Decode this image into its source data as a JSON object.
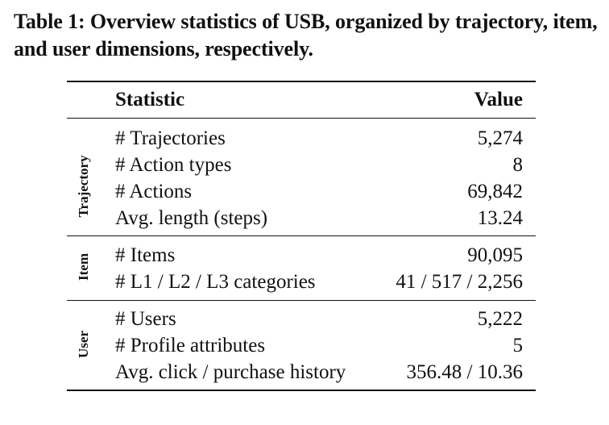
{
  "caption": "Table 1: Overview statistics of USB, organized by trajectory, item, and user dimensions, respectively.",
  "header": {
    "statistic": "Statistic",
    "value": "Value"
  },
  "groups": [
    {
      "label": "Trajectory",
      "rows": [
        {
          "statistic": "# Trajectories",
          "value": "5,274"
        },
        {
          "statistic": "# Action types",
          "value": "8"
        },
        {
          "statistic": "# Actions",
          "value": "69,842"
        },
        {
          "statistic": "Avg. length (steps)",
          "value": "13.24"
        }
      ]
    },
    {
      "label": "Item",
      "rows": [
        {
          "statistic": "# Items",
          "value": "90,095"
        },
        {
          "statistic": "# L1 / L2 / L3 categories",
          "value": "41 / 517 / 2,256"
        }
      ]
    },
    {
      "label": "User",
      "rows": [
        {
          "statistic": "# Users",
          "value": "5,222"
        },
        {
          "statistic": "# Profile attributes",
          "value": "5"
        },
        {
          "statistic": "Avg. click / purchase history",
          "value": "356.48 / 10.36"
        }
      ]
    }
  ]
}
